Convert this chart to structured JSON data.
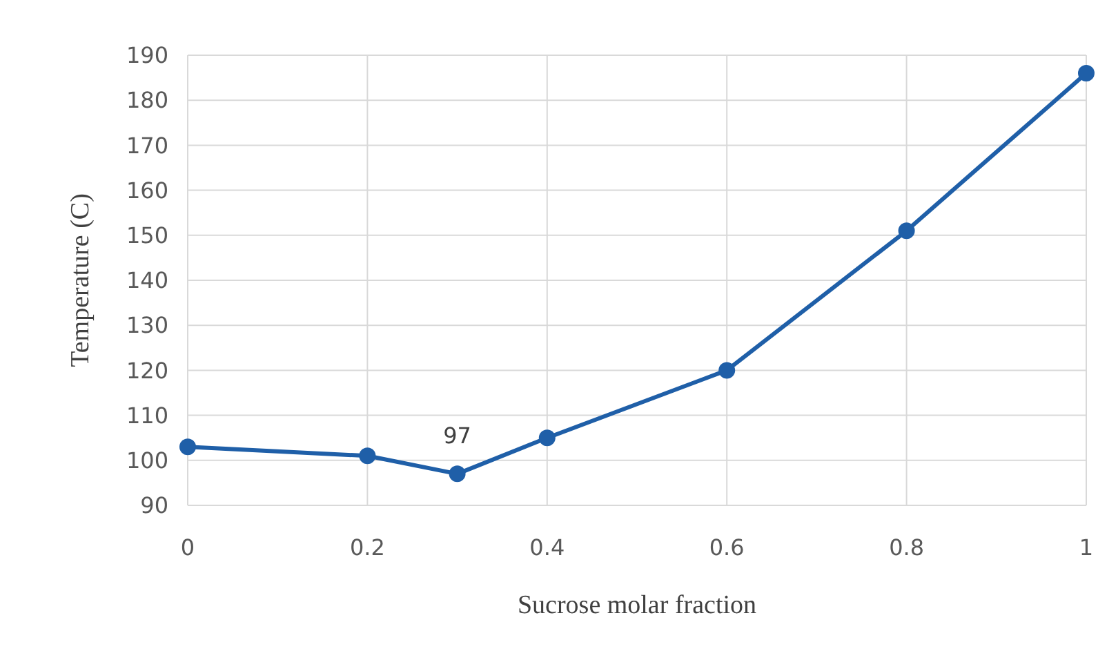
{
  "chart_data": {
    "type": "line",
    "xlabel": "Sucrose molar fraction",
    "ylabel": "Temperature (C)",
    "x": [
      0,
      0.2,
      0.3,
      0.4,
      0.6,
      0.8,
      1
    ],
    "series": [
      {
        "color": "#1f5fa8",
        "values": [
          103,
          101,
          97,
          105,
          120,
          151,
          186
        ]
      }
    ],
    "xlim": [
      0,
      1
    ],
    "xticks": [
      0,
      0.2,
      0.4,
      0.6,
      0.8,
      1
    ],
    "ylim": [
      90,
      190
    ],
    "yticks": [
      90,
      100,
      110,
      120,
      130,
      140,
      150,
      160,
      170,
      180,
      190
    ],
    "grid": true,
    "marker": "circle",
    "line_style": "solid",
    "annotations": [
      {
        "text": "97",
        "x": 0.3,
        "y": 97
      }
    ]
  }
}
